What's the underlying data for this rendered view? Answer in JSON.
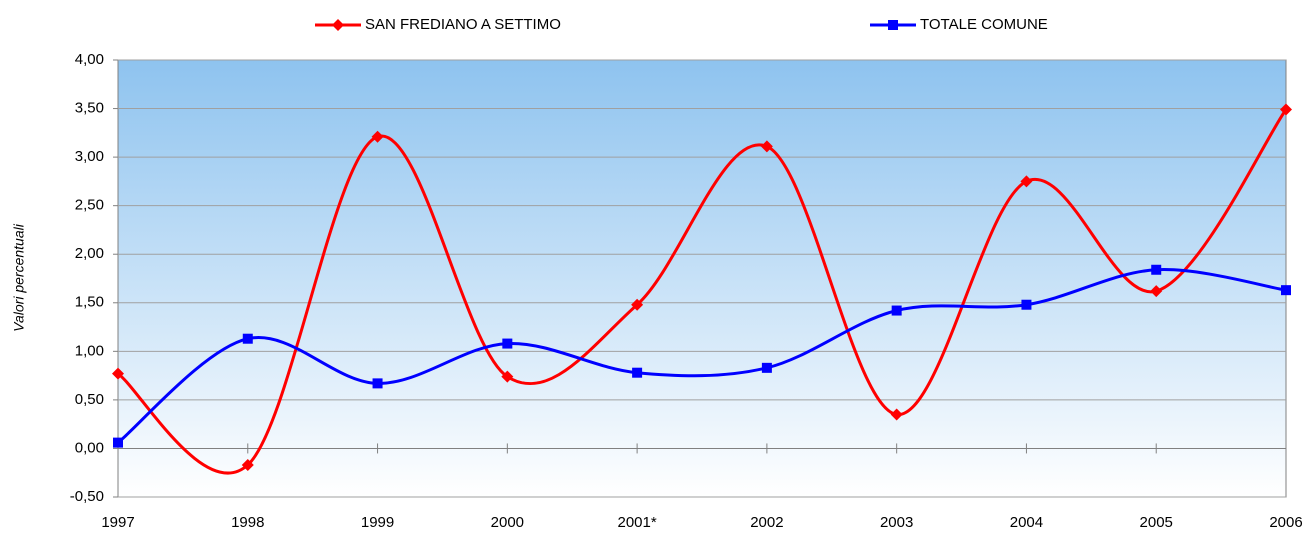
{
  "chart_data": {
    "type": "line",
    "y_label": "Valori percentuali",
    "categories": [
      "1997",
      "1998",
      "1999",
      "2000",
      "2001*",
      "2002",
      "2003",
      "2004",
      "2005",
      "2006"
    ],
    "series": [
      {
        "name": "SAN FREDIANO A SETTIMO",
        "color": "#ff0000",
        "marker": "diamond",
        "values": [
          0.77,
          -0.17,
          3.21,
          0.74,
          1.48,
          3.11,
          0.35,
          2.75,
          1.62,
          3.49
        ]
      },
      {
        "name": "TOTALE COMUNE",
        "color": "#0000ff",
        "marker": "square",
        "values": [
          0.06,
          1.13,
          0.67,
          1.08,
          0.78,
          0.83,
          1.42,
          1.48,
          1.84,
          1.63
        ]
      }
    ],
    "ylim": [
      -0.5,
      4
    ],
    "yticks": [
      {
        "value": -0.5,
        "label": "-0,50"
      },
      {
        "value": 0,
        "label": "0,00"
      },
      {
        "value": 0.5,
        "label": "0,50"
      },
      {
        "value": 1,
        "label": "1,00"
      },
      {
        "value": 1.5,
        "label": "1,50"
      },
      {
        "value": 2,
        "label": "2,00"
      },
      {
        "value": 2.5,
        "label": "2,50"
      },
      {
        "value": 3,
        "label": "3,00"
      },
      {
        "value": 3.5,
        "label": "3,50"
      },
      {
        "value": 4,
        "label": "4,00"
      }
    ],
    "grid": true,
    "smooth": true,
    "legend": "top"
  }
}
